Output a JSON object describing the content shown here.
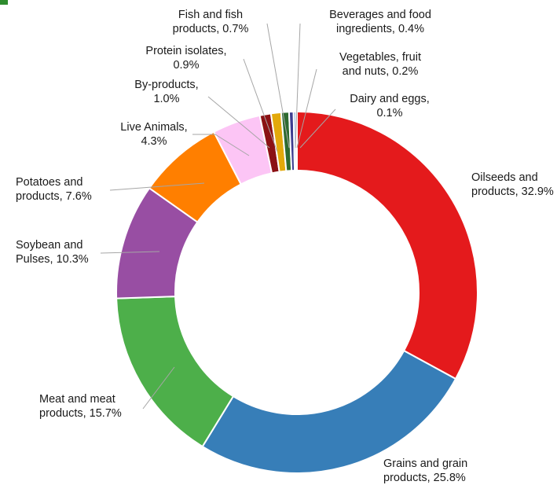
{
  "chart_data": {
    "type": "pie",
    "variant": "donut",
    "title": "",
    "slices": [
      {
        "label": "Oilseeds and products",
        "value": 32.9,
        "color": "#e41a1c",
        "label_lines": [
          "Oilseeds and",
          "products, 32.9%"
        ]
      },
      {
        "label": "Grains and grain products",
        "value": 25.8,
        "color": "#377eb8",
        "label_lines": [
          "Grains and grain",
          "products, 25.8%"
        ]
      },
      {
        "label": "Meat and meat products",
        "value": 15.7,
        "color": "#4daf4a",
        "label_lines": [
          "Meat and meat",
          "products, 15.7%"
        ]
      },
      {
        "label": "Soybean and Pulses",
        "value": 10.3,
        "color": "#984ea3",
        "label_lines": [
          "Soybean and",
          "Pulses, 10.3%"
        ]
      },
      {
        "label": "Potatoes and products",
        "value": 7.6,
        "color": "#ff7f00",
        "label_lines": [
          "Potatoes and",
          "products, 7.6%"
        ]
      },
      {
        "label": "Live Animals",
        "value": 4.3,
        "color": "#fcc5f5",
        "label_lines": [
          "Live Animals,",
          "4.3%"
        ]
      },
      {
        "label": "By-products",
        "value": 1.0,
        "color": "#8b1114",
        "label_lines": [
          "By-products,",
          "1.0%"
        ]
      },
      {
        "label": "Protein isolates",
        "value": 0.9,
        "color": "#e3a90b",
        "label_lines": [
          "Protein isolates,",
          "0.9%"
        ]
      },
      {
        "label": "Fish and fish products",
        "value": 0.7,
        "color": "#2e6b30",
        "label_lines": [
          "Fish and fish",
          "products, 0.7%"
        ]
      },
      {
        "label": "Beverages and food ingredients",
        "value": 0.4,
        "color": "#3d3d8f",
        "label_lines": [
          "Beverages and food",
          "ingredients, 0.4%"
        ]
      },
      {
        "label": "Vegetables, fruit and nuts",
        "value": 0.2,
        "color": "#5b8fc7",
        "label_lines": [
          "Vegetables, fruit",
          "and nuts, 0.2%"
        ]
      },
      {
        "label": "Dairy and eggs",
        "value": 0.1,
        "color": "#4f6228",
        "label_lines": [
          "Dairy and eggs,",
          "0.1%"
        ]
      }
    ],
    "start_angle": "12 o'clock",
    "direction": "clockwise",
    "legend": "none",
    "label_style": "outside labels with leader lines"
  }
}
